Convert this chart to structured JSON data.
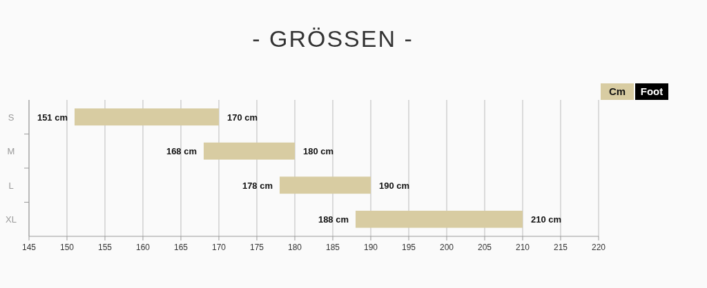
{
  "chart_data": {
    "type": "bar",
    "orientation": "horizontal",
    "title": "- GRÖSSEN -",
    "categories": [
      "S",
      "M",
      "L",
      "XL"
    ],
    "base": [
      151,
      168,
      178,
      188
    ],
    "values": [
      19,
      12,
      12,
      22
    ],
    "color": "#d8cca2",
    "xlim": [
      145,
      220
    ],
    "xticks": [
      145,
      150,
      155,
      160,
      165,
      170,
      175,
      180,
      185,
      190,
      195,
      200,
      205,
      210,
      215,
      220
    ],
    "grid": "x",
    "annotations": [
      "Cm",
      "Foot",
      {
        "text": "151 cm",
        "x": 151,
        "y": "S"
      },
      {
        "text": "170 cm",
        "x": 170,
        "y": "S"
      },
      {
        "text": "168 cm",
        "x": 168,
        "y": "M"
      },
      {
        "text": "180 cm",
        "x": 180,
        "y": "M"
      },
      {
        "text": "178 cm",
        "x": 178,
        "y": "L"
      },
      {
        "text": "190 cm",
        "x": 190,
        "y": "L"
      },
      {
        "text": "188 cm",
        "x": 188,
        "y": "XL"
      },
      {
        "text": "210 cm",
        "x": 210,
        "y": "XL"
      }
    ]
  }
}
